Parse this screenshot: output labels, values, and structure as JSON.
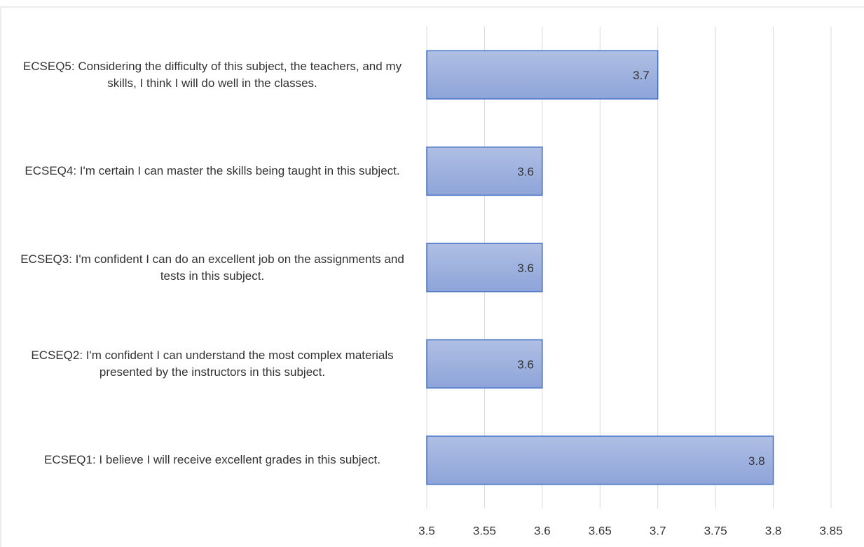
{
  "chart_data": {
    "type": "bar",
    "orientation": "horizontal",
    "categories": [
      "ECSEQ5: Considering the difficulty of this subject, the teachers, and my skills, I think I will do well in the classes.",
      "ECSEQ4: I'm certain I can master the skills being taught in this subject.",
      "ECSEQ3: I'm confident I can do an excellent job on the assignments and tests in this subject.",
      "ECSEQ2: I'm confident I can understand the most complex materials presented by the instructors in this subject.",
      "ECSEQ1: I believe I will receive excellent grades in this subject."
    ],
    "values": [
      3.7,
      3.6,
      3.6,
      3.6,
      3.8
    ],
    "color": "#4472c4",
    "xlim": [
      3.5,
      3.85
    ],
    "xticks": [
      3.5,
      3.55,
      3.6,
      3.65,
      3.7,
      3.75,
      3.8,
      3.85
    ],
    "grid": true
  }
}
